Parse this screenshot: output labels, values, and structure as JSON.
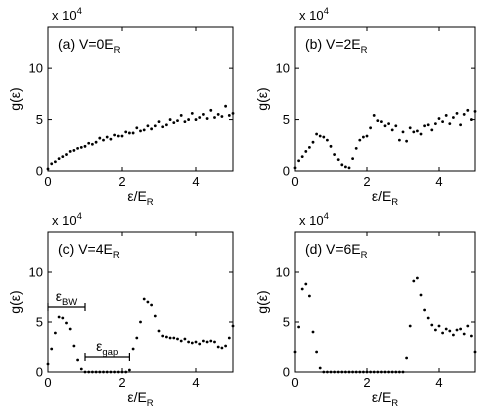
{
  "chart_data": [
    {
      "type": "scatter",
      "title": "(a) V=0E_R",
      "title_main": "(a) V=0E",
      "title_sub": "R",
      "multiplier": "x 10",
      "multiplier_exp": "4",
      "xlabel_main": "ε/E",
      "xlabel_sub": "R",
      "ylabel": "g(ε)",
      "xlim": [
        0,
        5
      ],
      "ylim": [
        0,
        14
      ],
      "xticks": [
        0,
        2,
        4
      ],
      "yticks": [
        0,
        5,
        10
      ],
      "x": [
        0.0,
        0.1,
        0.2,
        0.3,
        0.4,
        0.5,
        0.6,
        0.7,
        0.8,
        0.9,
        1.0,
        1.1,
        1.2,
        1.3,
        1.4,
        1.5,
        1.6,
        1.7,
        1.8,
        1.9,
        2.0,
        2.1,
        2.2,
        2.3,
        2.4,
        2.5,
        2.6,
        2.7,
        2.8,
        2.9,
        3.0,
        3.1,
        3.2,
        3.3,
        3.4,
        3.5,
        3.6,
        3.7,
        3.8,
        3.9,
        4.0,
        4.1,
        4.2,
        4.3,
        4.4,
        4.5,
        4.6,
        4.7,
        4.8,
        4.9,
        5.0
      ],
      "y": [
        0.2,
        0.7,
        0.9,
        1.2,
        1.4,
        1.6,
        1.9,
        2.0,
        2.2,
        2.3,
        2.4,
        2.7,
        2.6,
        2.8,
        3.2,
        3.0,
        3.3,
        3.1,
        3.5,
        3.4,
        3.4,
        3.8,
        3.7,
        3.7,
        4.2,
        3.9,
        4.0,
        4.4,
        4.1,
        4.4,
        4.8,
        4.3,
        4.5,
        5.0,
        4.7,
        4.9,
        5.4,
        4.8,
        5.0,
        5.6,
        5.0,
        5.2,
        5.5,
        5.1,
        5.9,
        5.2,
        5.5,
        5.3,
        6.3,
        5.4,
        5.6
      ]
    },
    {
      "type": "scatter",
      "title": "(b) V=2E_R",
      "title_main": "(b) V=2E",
      "title_sub": "R",
      "multiplier": "x 10",
      "multiplier_exp": "4",
      "xlabel_main": "ε/E",
      "xlabel_sub": "R",
      "ylabel": "g(ε)",
      "xlim": [
        0,
        5
      ],
      "ylim": [
        0,
        14
      ],
      "xticks": [
        0,
        2,
        4
      ],
      "yticks": [
        0,
        5,
        10
      ],
      "x": [
        0.0,
        0.1,
        0.2,
        0.3,
        0.4,
        0.5,
        0.6,
        0.7,
        0.8,
        0.9,
        1.0,
        1.1,
        1.2,
        1.3,
        1.4,
        1.5,
        1.6,
        1.7,
        1.8,
        1.9,
        2.0,
        2.1,
        2.2,
        2.3,
        2.4,
        2.5,
        2.6,
        2.7,
        2.8,
        2.9,
        3.0,
        3.1,
        3.2,
        3.3,
        3.4,
        3.5,
        3.6,
        3.7,
        3.8,
        3.9,
        4.0,
        4.1,
        4.2,
        4.3,
        4.4,
        4.5,
        4.6,
        4.7,
        4.8,
        4.9,
        5.0
      ],
      "y": [
        0.3,
        1.0,
        1.4,
        1.9,
        2.3,
        2.8,
        3.6,
        3.4,
        3.3,
        3.0,
        2.4,
        1.6,
        1.1,
        0.6,
        0.4,
        0.3,
        1.2,
        2.2,
        3.0,
        3.3,
        3.4,
        4.2,
        5.4,
        4.9,
        4.8,
        4.4,
        4.6,
        4.0,
        4.4,
        3.0,
        3.8,
        2.9,
        4.2,
        3.8,
        3.9,
        3.6,
        4.4,
        4.5,
        4.0,
        4.6,
        5.1,
        4.8,
        5.4,
        4.6,
        5.2,
        5.6,
        4.5,
        5.5,
        5.9,
        5.0,
        5.8
      ]
    },
    {
      "type": "scatter",
      "title": "(c) V=4E_R",
      "title_main": "(c) V=4E",
      "title_sub": "R",
      "multiplier": "x 10",
      "multiplier_exp": "4",
      "xlabel_main": "ε/E",
      "xlabel_sub": "R",
      "ylabel": "g(ε)",
      "xlim": [
        0,
        5
      ],
      "ylim": [
        0,
        14
      ],
      "xticks": [
        0,
        2,
        4
      ],
      "yticks": [
        0,
        5,
        10
      ],
      "x": [
        0.0,
        0.1,
        0.2,
        0.3,
        0.4,
        0.5,
        0.6,
        0.7,
        0.8,
        0.9,
        1.0,
        1.1,
        1.2,
        1.3,
        1.4,
        1.5,
        1.6,
        1.7,
        1.8,
        1.9,
        2.0,
        2.1,
        2.2,
        2.3,
        2.4,
        2.5,
        2.6,
        2.7,
        2.8,
        2.9,
        3.0,
        3.1,
        3.2,
        3.3,
        3.4,
        3.5,
        3.6,
        3.7,
        3.8,
        3.9,
        4.0,
        4.1,
        4.2,
        4.3,
        4.4,
        4.5,
        4.6,
        4.7,
        4.8,
        4.9,
        5.0
      ],
      "y": [
        0.8,
        2.3,
        3.9,
        5.5,
        5.4,
        4.9,
        4.3,
        2.6,
        1.2,
        0.3,
        0,
        0,
        0,
        0,
        0,
        0,
        0,
        0,
        0,
        0,
        0,
        0,
        0.2,
        2.3,
        3.4,
        5.0,
        7.3,
        7.0,
        6.7,
        5.6,
        4.1,
        3.6,
        3.5,
        3.4,
        3.4,
        3.3,
        3.1,
        3.3,
        3.0,
        2.9,
        3.0,
        2.8,
        3.1,
        3.0,
        3.1,
        3.0,
        2.5,
        2.4,
        2.6,
        3.4,
        4.6
      ],
      "annotations": [
        {
          "label_main": "ε",
          "label_sub": "BW",
          "from": 0.0,
          "to": 1.0,
          "y": 6.5
        },
        {
          "label_main": "ε",
          "label_sub": "gap",
          "from": 1.0,
          "to": 2.2,
          "y": 1.5
        }
      ]
    },
    {
      "type": "scatter",
      "title": "(d) V=6E_R",
      "title_main": "(d) V=6E",
      "title_sub": "R",
      "multiplier": "x 10",
      "multiplier_exp": "4",
      "xlabel_main": "ε/E",
      "xlabel_sub": "R",
      "ylabel": "g(ε)",
      "xlim": [
        0,
        5
      ],
      "ylim": [
        0,
        14
      ],
      "xticks": [
        0,
        2,
        4
      ],
      "yticks": [
        0,
        5,
        10
      ],
      "x": [
        0.0,
        0.1,
        0.2,
        0.3,
        0.4,
        0.5,
        0.6,
        0.7,
        0.8,
        0.9,
        1.0,
        1.1,
        1.2,
        1.3,
        1.4,
        1.5,
        1.6,
        1.7,
        1.8,
        1.9,
        2.0,
        2.1,
        2.2,
        2.3,
        2.4,
        2.5,
        2.6,
        2.7,
        2.8,
        2.9,
        3.0,
        3.1,
        3.2,
        3.3,
        3.4,
        3.5,
        3.6,
        3.7,
        3.8,
        3.9,
        4.0,
        4.1,
        4.2,
        4.3,
        4.4,
        4.5,
        4.6,
        4.7,
        4.8,
        4.9,
        5.0
      ],
      "y": [
        2.0,
        4.5,
        8.3,
        8.8,
        7.6,
        4.0,
        2.0,
        0.4,
        0,
        0,
        0,
        0,
        0,
        0,
        0,
        0,
        0,
        0,
        0,
        0,
        0,
        0,
        0,
        0,
        0,
        0,
        0,
        0,
        0,
        0,
        0,
        1.4,
        4.6,
        9.1,
        9.4,
        7.7,
        6.2,
        5.4,
        4.7,
        4.2,
        4.6,
        3.9,
        4.3,
        4.1,
        3.7,
        4.2,
        4.3,
        3.8,
        4.6,
        3.6,
        2.0
      ]
    }
  ]
}
